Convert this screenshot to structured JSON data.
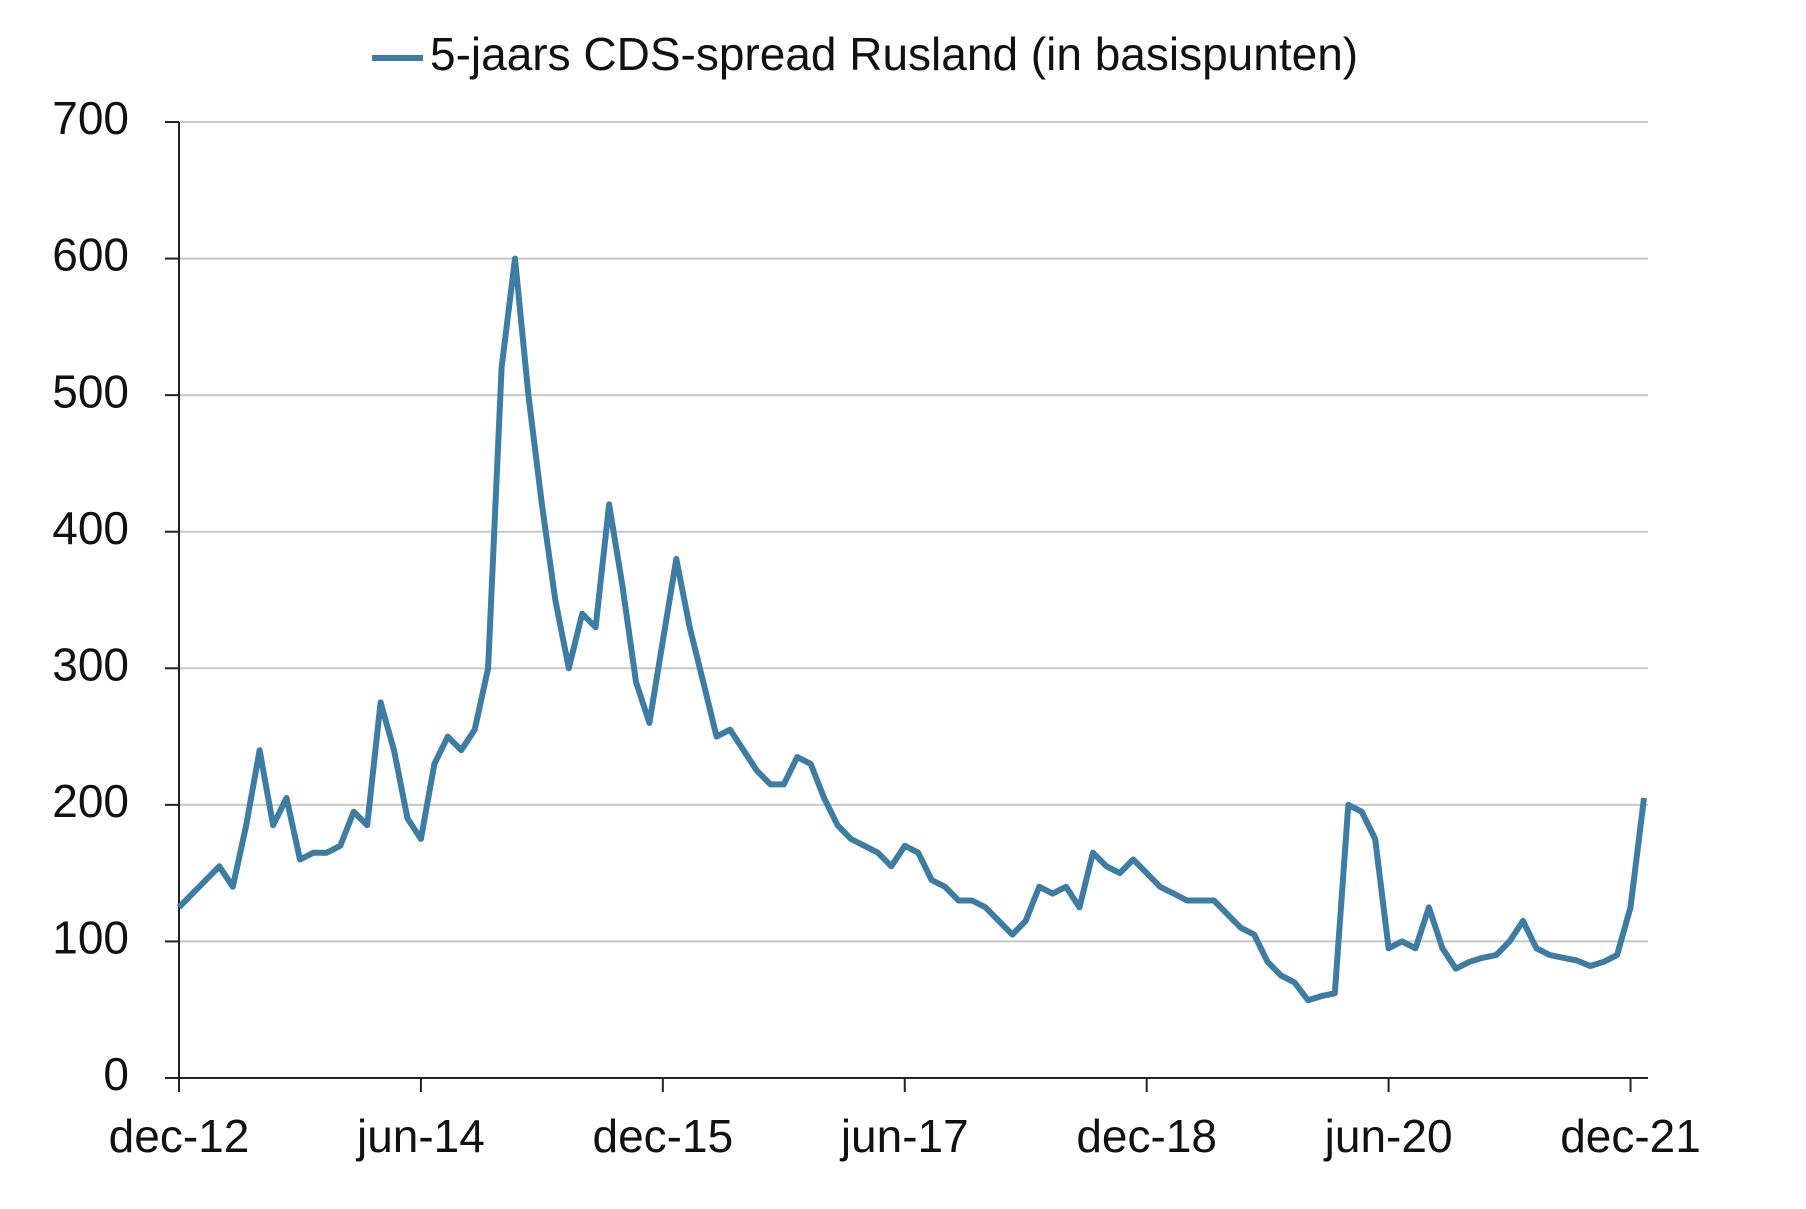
{
  "chart_data": {
    "type": "line",
    "categories": [
      "dec-12",
      null,
      null,
      null,
      null,
      null,
      null,
      null,
      null,
      null,
      null,
      null,
      null,
      null,
      null,
      null,
      null,
      null,
      "jun-14",
      null,
      null,
      null,
      null,
      null,
      null,
      null,
      null,
      null,
      null,
      null,
      null,
      null,
      null,
      null,
      null,
      null,
      "dec-15",
      null,
      null,
      null,
      null,
      null,
      null,
      null,
      null,
      null,
      null,
      null,
      null,
      null,
      null,
      null,
      null,
      null,
      "jun-17",
      null,
      null,
      null,
      null,
      null,
      null,
      null,
      null,
      null,
      null,
      null,
      null,
      null,
      null,
      null,
      null,
      null,
      "dec-18",
      null,
      null,
      null,
      null,
      null,
      null,
      null,
      null,
      null,
      null,
      null,
      null,
      null,
      null,
      null,
      null,
      null,
      "jun-20",
      null,
      null,
      null,
      null,
      null,
      null,
      null,
      null,
      null,
      null,
      null,
      null,
      null,
      null,
      null,
      null,
      null,
      "dec-21",
      null
    ],
    "series": [
      {
        "name": "5-jaars CDS-spread Rusland (in basispunten)",
        "color": "#3d7ca3",
        "values": [
          125,
          135,
          145,
          155,
          140,
          185,
          240,
          185,
          205,
          160,
          165,
          165,
          170,
          195,
          185,
          275,
          240,
          190,
          175,
          230,
          250,
          240,
          255,
          300,
          520,
          600,
          500,
          420,
          350,
          300,
          340,
          330,
          420,
          360,
          290,
          260,
          320,
          380,
          330,
          290,
          250,
          255,
          240,
          225,
          215,
          215,
          235,
          230,
          205,
          185,
          175,
          170,
          165,
          155,
          170,
          165,
          145,
          140,
          130,
          130,
          125,
          115,
          105,
          115,
          140,
          135,
          140,
          125,
          165,
          155,
          150,
          160,
          150,
          140,
          135,
          130,
          130,
          130,
          120,
          110,
          105,
          85,
          75,
          70,
          57,
          60,
          62,
          200,
          195,
          175,
          95,
          100,
          95,
          125,
          95,
          80,
          85,
          88,
          90,
          100,
          115,
          95,
          90,
          88,
          86,
          82,
          85,
          90,
          125,
          205
        ]
      }
    ],
    "ylim": [
      0,
      700
    ],
    "yticks": [
      0,
      100,
      200,
      300,
      400,
      500,
      600,
      700
    ],
    "grid": true,
    "legend": "top"
  }
}
